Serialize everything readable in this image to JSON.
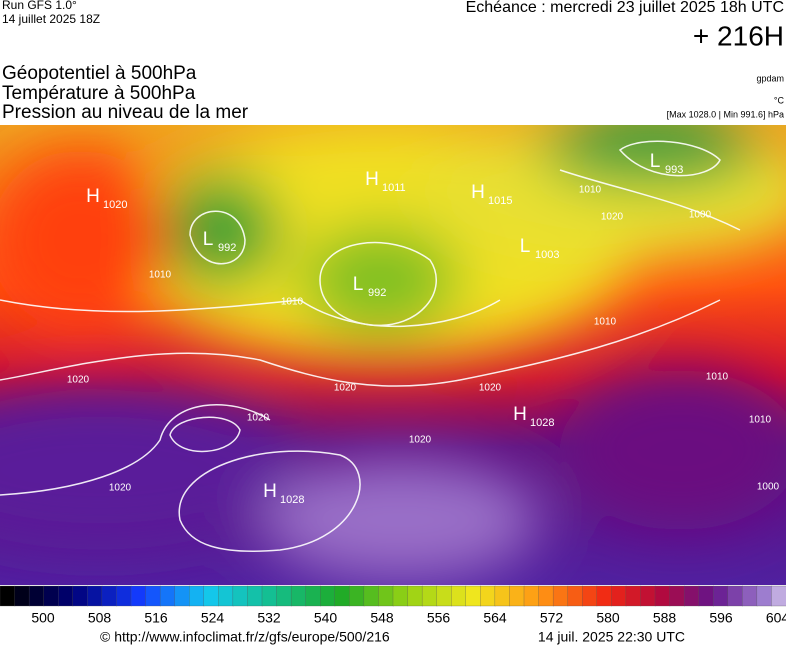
{
  "header": {
    "run": "Run GFS 1.0°",
    "date": "14 juillet 2025 18Z",
    "echeance": "Echéance : mercredi 23 juillet 2025 18h UTC",
    "lead": "+ 216H"
  },
  "layers": [
    "Géopotentiel à 500hPa",
    "Température à 500hPa",
    "Pression au niveau de la mer"
  ],
  "units": [
    "gpdam",
    "°C",
    "[Max 1028.0 | Min 991.6] hPa"
  ],
  "centers": [
    {
      "letter": "H",
      "value": 1020
    },
    {
      "letter": "L",
      "value": 992
    },
    {
      "letter": "H",
      "value": 1011
    },
    {
      "letter": "H",
      "value": 1015
    },
    {
      "letter": "L",
      "value": 992
    },
    {
      "letter": "L",
      "value": 1003
    },
    {
      "letter": "L",
      "value": 993
    },
    {
      "letter": "H",
      "value": 1028
    },
    {
      "letter": "H",
      "value": 1028
    }
  ],
  "isobars": [
    1010,
    1020,
    1000,
    1010,
    1020,
    1020,
    1020,
    1020,
    1020,
    1020,
    1010,
    1010,
    1010,
    1000,
    1010
  ],
  "colorbar": {
    "labels": [
      500,
      508,
      516,
      524,
      532,
      540,
      548,
      556,
      564,
      572,
      580,
      588,
      596,
      604
    ]
  },
  "footer": {
    "url": "© http://www.infoclimat.fr/z/gfs/europe/500/216",
    "time": "14 juil. 2025 22:30 UTC"
  }
}
